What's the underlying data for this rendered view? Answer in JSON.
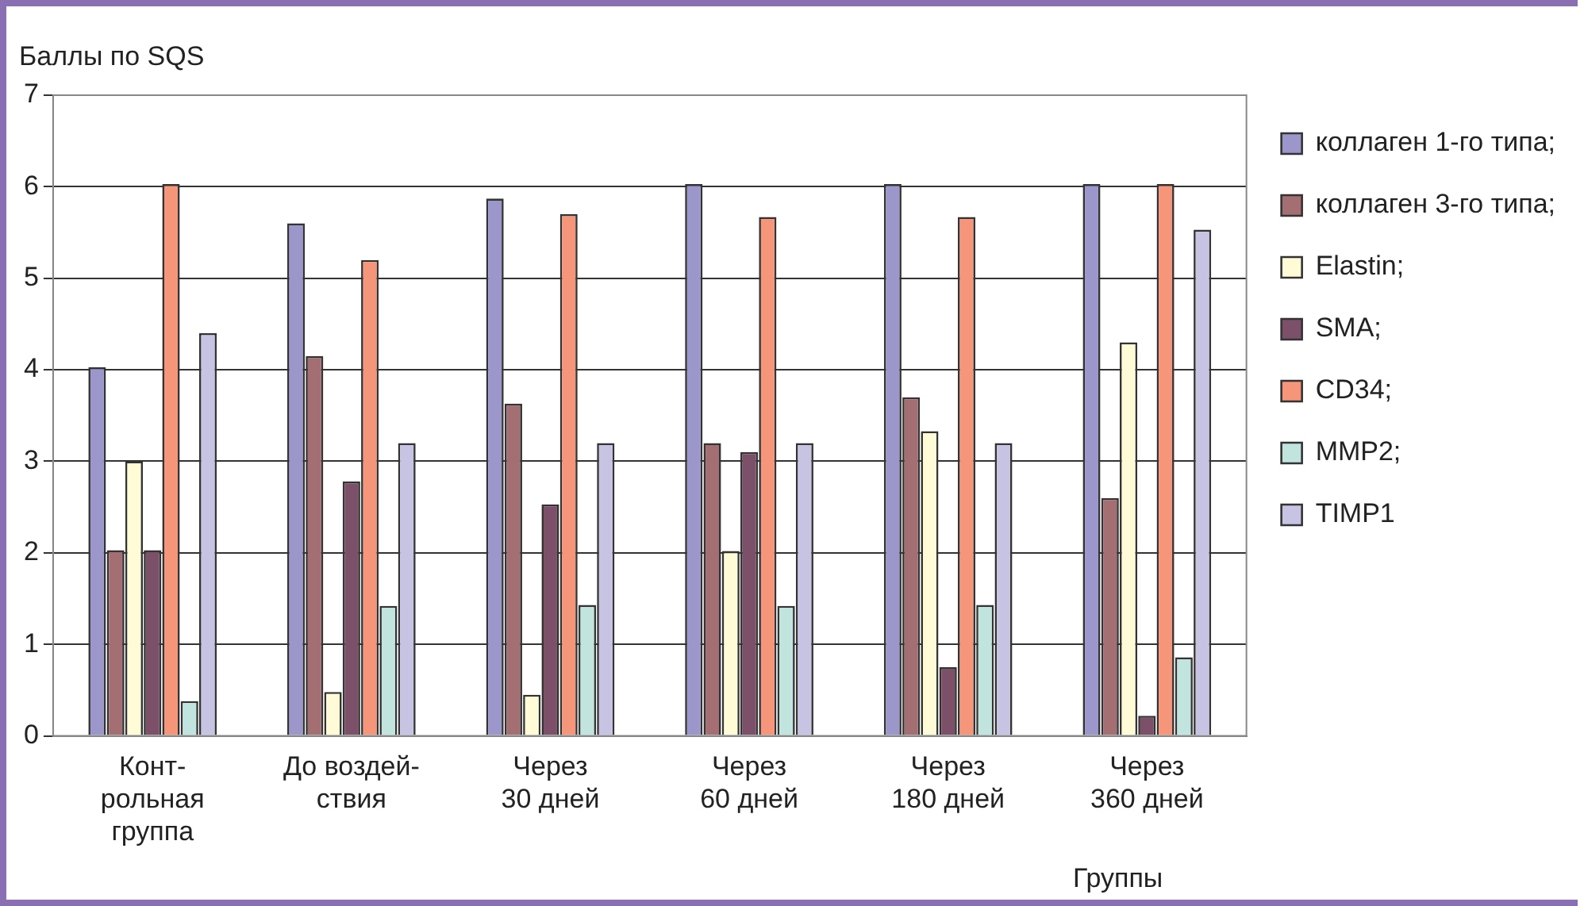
{
  "chart_data": {
    "type": "bar",
    "ylabel": "Баллы по SQS",
    "xlabel": "Группы",
    "categories": [
      "Конт-\nрольная\nгруппа",
      "До воздей-\nствия",
      "Через\n30 дней",
      "Через\n60 дней",
      "Через\n180 дней",
      "Через\n360 дней"
    ],
    "ylim": [
      0,
      7
    ],
    "yticks": [
      0,
      1,
      2,
      3,
      4,
      5,
      6,
      7
    ],
    "grid": "y",
    "legend": "right",
    "series": [
      {
        "name": "коллаген 1-го типа;",
        "color": "#9b97cb",
        "values": [
          4.03,
          5.6,
          5.87,
          6.03,
          6.03,
          6.03
        ]
      },
      {
        "name": "коллаген 3-го типа;",
        "color": "#a46f72",
        "values": [
          2.03,
          4.15,
          3.63,
          3.2,
          3.7,
          2.6
        ]
      },
      {
        "name": "Elastin;",
        "color": "#fffbd6",
        "values": [
          3.0,
          0.48,
          0.45,
          2.02,
          3.33,
          4.3
        ]
      },
      {
        "name": "SMA;",
        "color": "#7b5068",
        "values": [
          2.03,
          2.78,
          2.53,
          3.1,
          0.75,
          0.22
        ]
      },
      {
        "name": "CD34;",
        "color": "#f5957a",
        "values": [
          6.03,
          5.2,
          5.7,
          5.67,
          5.67,
          6.03
        ]
      },
      {
        "name": "MMP2;",
        "color": "#c1e4df",
        "values": [
          0.38,
          1.42,
          1.43,
          1.42,
          1.43,
          0.86
        ]
      },
      {
        "name": "TIMP1",
        "color": "#c7c3e2",
        "values": [
          4.4,
          3.2,
          3.2,
          3.2,
          3.2,
          5.53
        ]
      }
    ]
  }
}
